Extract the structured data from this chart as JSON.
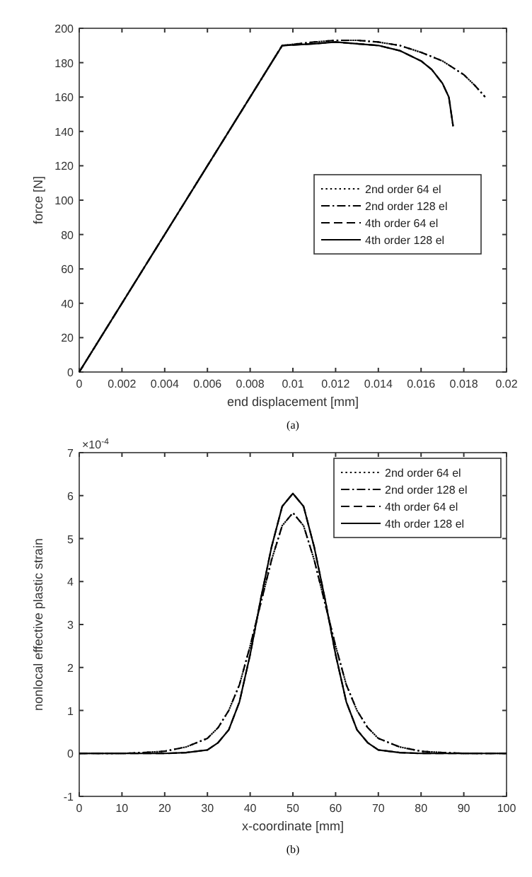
{
  "chart_data": [
    {
      "type": "line",
      "xlabel": "end displacement [mm]",
      "ylabel": "force [N]",
      "xlim": [
        0,
        0.02
      ],
      "ylim": [
        0,
        200
      ],
      "xticks": [
        0,
        0.002,
        0.004,
        0.006,
        0.008,
        0.01,
        0.012,
        0.014,
        0.016,
        0.018,
        0.02
      ],
      "yticks": [
        0,
        20,
        40,
        60,
        80,
        100,
        120,
        140,
        160,
        180,
        200
      ],
      "grid": false,
      "legend": "right",
      "marker": "none",
      "annotations": [
        "(a)"
      ],
      "series": [
        {
          "name": "2nd order 64 el",
          "color": "#000000",
          "line_style": "dotted",
          "x": [
            0,
            0.0095,
            0.011,
            0.012,
            0.013,
            0.014,
            0.015,
            0.016,
            0.017,
            0.018,
            0.0185,
            0.019
          ],
          "values": [
            0,
            190,
            192,
            193,
            193,
            192,
            190,
            186,
            181,
            173,
            167,
            160
          ]
        },
        {
          "name": "2nd order 128 el",
          "color": "#000000",
          "line_style": "dashdot",
          "x": [
            0,
            0.0095,
            0.011,
            0.012,
            0.013,
            0.014,
            0.015,
            0.016,
            0.017,
            0.018,
            0.0185,
            0.019
          ],
          "values": [
            0,
            190,
            192,
            193,
            193,
            192,
            190,
            186,
            181,
            173,
            167,
            160
          ]
        },
        {
          "name": "4th order 64 el",
          "color": "#000000",
          "line_style": "dashed",
          "x": [
            0,
            0.0095,
            0.011,
            0.012,
            0.013,
            0.014,
            0.015,
            0.016,
            0.0165,
            0.017,
            0.0173,
            0.0175
          ],
          "values": [
            0,
            190,
            191,
            192,
            191,
            190,
            187,
            181,
            176,
            168,
            160,
            143
          ]
        },
        {
          "name": "4th order 128 el",
          "color": "#000000",
          "line_style": "solid",
          "x": [
            0,
            0.0095,
            0.011,
            0.012,
            0.013,
            0.014,
            0.015,
            0.016,
            0.0165,
            0.017,
            0.0173,
            0.0175
          ],
          "values": [
            0,
            190,
            191,
            192,
            191,
            190,
            187,
            181,
            176,
            168,
            160,
            143
          ]
        }
      ]
    },
    {
      "type": "line",
      "xlabel": "x-coordinate [mm]",
      "ylabel": "nonlocal effective plastic strain",
      "xlim": [
        0,
        100
      ],
      "ylim": [
        -1,
        7
      ],
      "xticks": [
        0,
        10,
        20,
        30,
        40,
        50,
        60,
        70,
        80,
        90,
        100
      ],
      "yticks": [
        -1,
        0,
        1,
        2,
        3,
        4,
        5,
        6,
        7
      ],
      "grid": false,
      "legend": "top right",
      "marker": "none",
      "annotations": [
        "×10$^{-4}$",
        "(b)"
      ],
      "series": [
        {
          "name": "2nd order 64 el",
          "color": "#000000",
          "line_style": "dotted",
          "x": [
            0,
            10,
            15,
            20,
            25,
            30,
            32.5,
            35,
            37.5,
            40,
            42.5,
            45,
            47.5,
            50,
            52.5,
            55,
            57.5,
            60,
            62.5,
            65,
            67.5,
            70,
            75,
            80,
            85,
            90,
            100
          ],
          "values": [
            0,
            0,
            0.02,
            0.05,
            0.15,
            0.35,
            0.6,
            1.0,
            1.6,
            2.5,
            3.5,
            4.5,
            5.3,
            5.6,
            5.3,
            4.5,
            3.5,
            2.5,
            1.6,
            1.0,
            0.6,
            0.35,
            0.15,
            0.05,
            0.02,
            0,
            0
          ]
        },
        {
          "name": "2nd order 128 el",
          "color": "#000000",
          "line_style": "dashdot",
          "x": [
            0,
            10,
            15,
            20,
            25,
            30,
            32.5,
            35,
            37.5,
            40,
            42.5,
            45,
            47.5,
            50,
            52.5,
            55,
            57.5,
            60,
            62.5,
            65,
            67.5,
            70,
            75,
            80,
            85,
            90,
            100
          ],
          "values": [
            0,
            0,
            0.02,
            0.05,
            0.15,
            0.35,
            0.6,
            1.0,
            1.6,
            2.5,
            3.5,
            4.5,
            5.3,
            5.6,
            5.3,
            4.5,
            3.5,
            2.5,
            1.6,
            1.0,
            0.6,
            0.35,
            0.15,
            0.05,
            0.02,
            0,
            0
          ]
        },
        {
          "name": "4th order 64 el",
          "color": "#000000",
          "line_style": "dashed",
          "x": [
            0,
            10,
            15,
            20,
            25,
            30,
            32.5,
            35,
            37.5,
            40,
            42.5,
            45,
            47.5,
            50,
            52.5,
            55,
            57.5,
            60,
            62.5,
            65,
            67.5,
            70,
            75,
            80,
            85,
            90,
            100
          ],
          "values": [
            0,
            0,
            0,
            0,
            0.02,
            0.08,
            0.25,
            0.55,
            1.2,
            2.3,
            3.6,
            4.8,
            5.75,
            6.05,
            5.75,
            4.8,
            3.6,
            2.3,
            1.2,
            0.55,
            0.25,
            0.08,
            0.02,
            0,
            0,
            0,
            0
          ]
        },
        {
          "name": "4th order 128 el",
          "color": "#000000",
          "line_style": "solid",
          "x": [
            0,
            10,
            15,
            20,
            25,
            30,
            32.5,
            35,
            37.5,
            40,
            42.5,
            45,
            47.5,
            50,
            52.5,
            55,
            57.5,
            60,
            62.5,
            65,
            67.5,
            70,
            75,
            80,
            85,
            90,
            100
          ],
          "values": [
            0,
            0,
            0,
            0,
            0.02,
            0.08,
            0.25,
            0.55,
            1.2,
            2.3,
            3.6,
            4.8,
            5.75,
            6.05,
            5.75,
            4.8,
            3.6,
            2.3,
            1.2,
            0.55,
            0.25,
            0.08,
            0.02,
            0,
            0,
            0,
            0
          ]
        }
      ]
    }
  ]
}
